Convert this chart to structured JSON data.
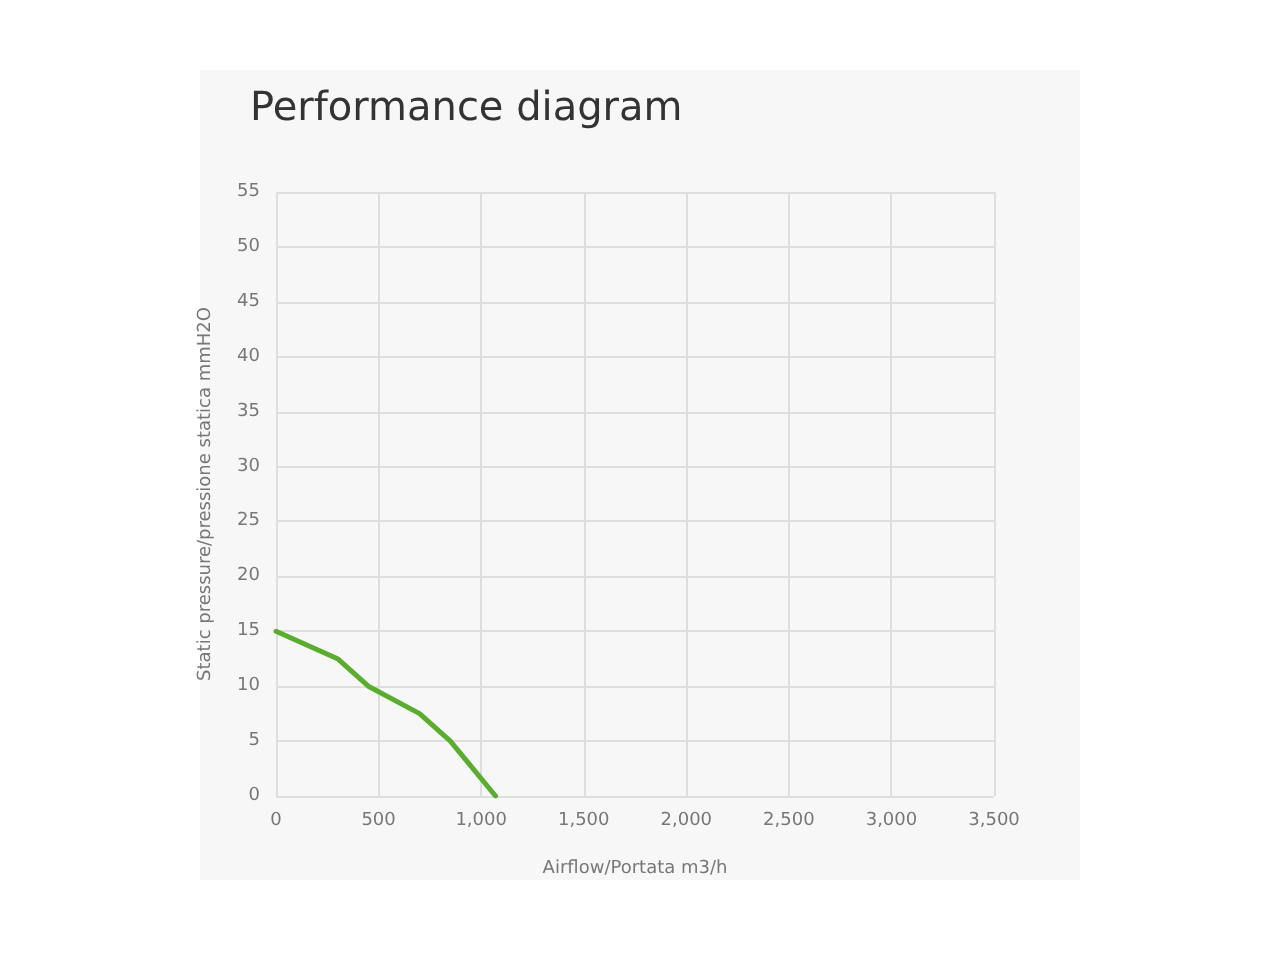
{
  "chart_data": {
    "type": "line",
    "title": "Performance diagram",
    "xlabel": "Airflow/Portata m3/h",
    "ylabel": "Static pressure/pressione statica mmH2O",
    "x": [
      0,
      300,
      450,
      700,
      850,
      1070
    ],
    "series": [
      {
        "color": "#5aad2f",
        "values": [
          15,
          12.5,
          10,
          7.5,
          5,
          0
        ]
      }
    ],
    "xlim": [
      0,
      3500
    ],
    "xticks": [
      {
        "value": 0,
        "label": "0"
      },
      {
        "value": 500,
        "label": "500"
      },
      {
        "value": 1000,
        "label": "1,000"
      },
      {
        "value": 1500,
        "label": "1,500"
      },
      {
        "value": 2000,
        "label": "2,000"
      },
      {
        "value": 2500,
        "label": "2,500"
      },
      {
        "value": 3000,
        "label": "3,000"
      },
      {
        "value": 3500,
        "label": "3,500"
      }
    ],
    "ylim": [
      0,
      55
    ],
    "yticks": [
      0,
      5,
      10,
      15,
      20,
      25,
      30,
      35,
      40,
      45,
      50,
      55
    ],
    "grid": true,
    "marker": "none",
    "line_style": "solid"
  }
}
